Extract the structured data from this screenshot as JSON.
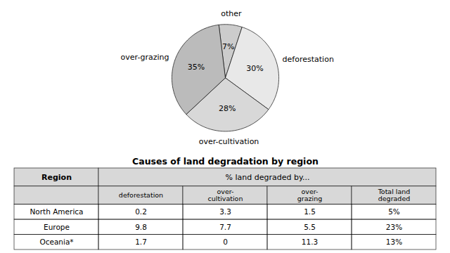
{
  "chart_data": [
    {
      "type": "pie",
      "categories": [
        "other",
        "deforestation",
        "over-cultivation",
        "over-grazing"
      ],
      "values": [
        7,
        30,
        28,
        35
      ],
      "value_labels": [
        "7%",
        "30%",
        "28%",
        "35%"
      ],
      "colors": [
        "#cccccc",
        "#e8e8e8",
        "#d8d8d8",
        "#bbbbbb"
      ],
      "data_labels": true
    },
    {
      "type": "table",
      "title": "Causes of land degradation by region",
      "header": [
        "Region",
        "% land degraded by..."
      ],
      "columns": [
        null,
        "deforestation",
        "over-\ncultivation",
        "over-\ngrazing",
        "Total land\ndegraded"
      ],
      "rows": [
        [
          "North America",
          "0.2",
          "3.3",
          "1.5",
          "5%"
        ],
        [
          "Europe",
          "9.8",
          "7.7",
          "5.5",
          "23%"
        ],
        [
          "Oceania*",
          "1.7",
          "0",
          "11.3",
          "13%"
        ]
      ],
      "color": "#d8d8d8"
    }
  ]
}
